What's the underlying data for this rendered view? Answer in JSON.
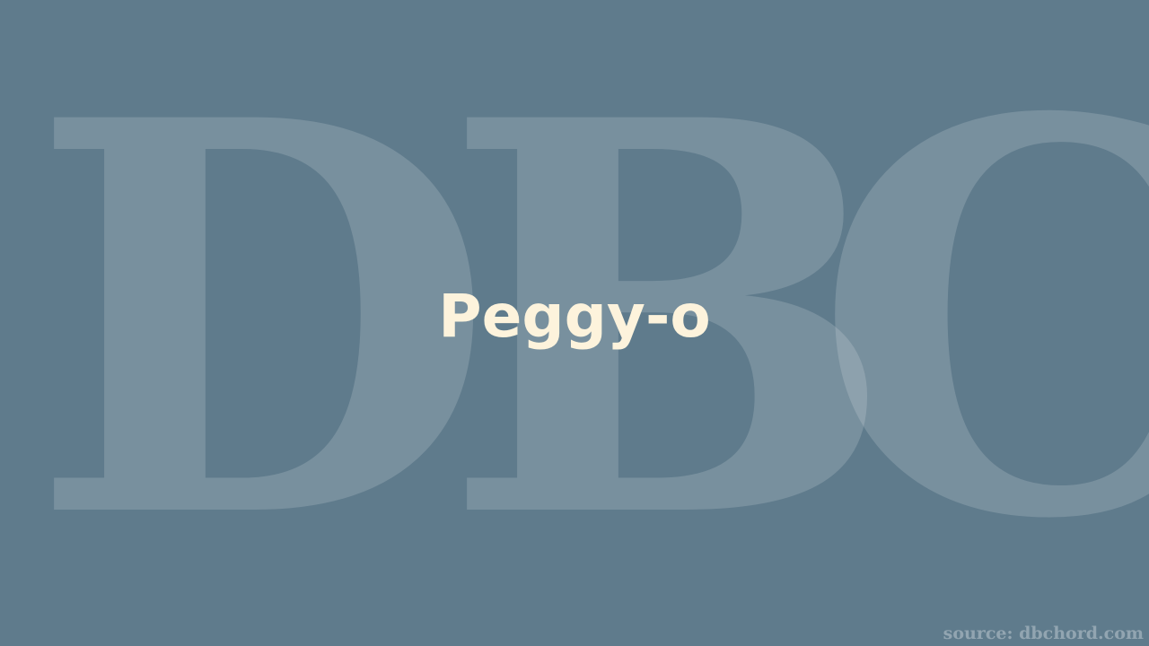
{
  "watermark": {
    "letters": [
      "D",
      "B",
      "C"
    ]
  },
  "title": "Peggy-o",
  "source": "source: dbchord.com",
  "colors": {
    "background": "#5f7b8c",
    "title": "#fdf3dc"
  }
}
